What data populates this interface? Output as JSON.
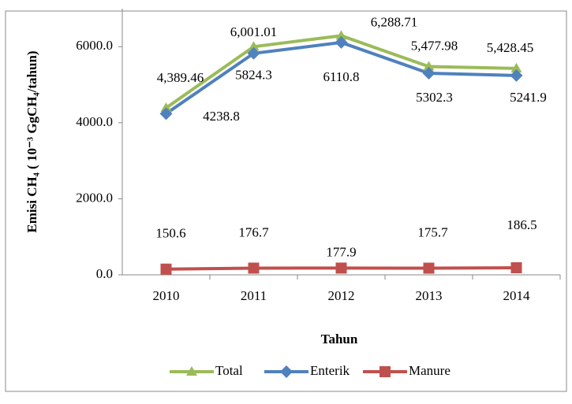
{
  "chart_data": {
    "type": "line",
    "y_label": "Emisi CH₄ ( 10⁻³ GgCH₄/tahun)",
    "x_label": "Tahun",
    "categories": [
      "2010",
      "2011",
      "2012",
      "2013",
      "2014"
    ],
    "series": [
      {
        "name": "Total",
        "color": "#9bbb59",
        "marker": "triangle",
        "values": [
          4389.46,
          6001.01,
          6288.71,
          5477.98,
          5428.45
        ],
        "value_labels": [
          "4,389.46",
          "6,001.01",
          "6,288.71",
          "5,477.98",
          "5,428.45"
        ]
      },
      {
        "name": "Enterik",
        "color": "#4f81bd",
        "marker": "diamond",
        "values": [
          4238.8,
          5824.3,
          6110.8,
          5302.3,
          5241.9
        ]
      },
      {
        "name": "Manure",
        "color": "#c0504d",
        "marker": "square",
        "values": [
          150.6,
          176.7,
          177.9,
          175.7,
          186.5
        ]
      }
    ],
    "ylim": [
      0,
      7000
    ],
    "yticks": [
      {
        "value": 0,
        "label": "0.0"
      },
      {
        "value": 2000,
        "label": "2000.0"
      },
      {
        "value": 4000,
        "label": "4000.0"
      },
      {
        "value": 6000,
        "label": "6000.0"
      }
    ],
    "legend": "bottom"
  }
}
